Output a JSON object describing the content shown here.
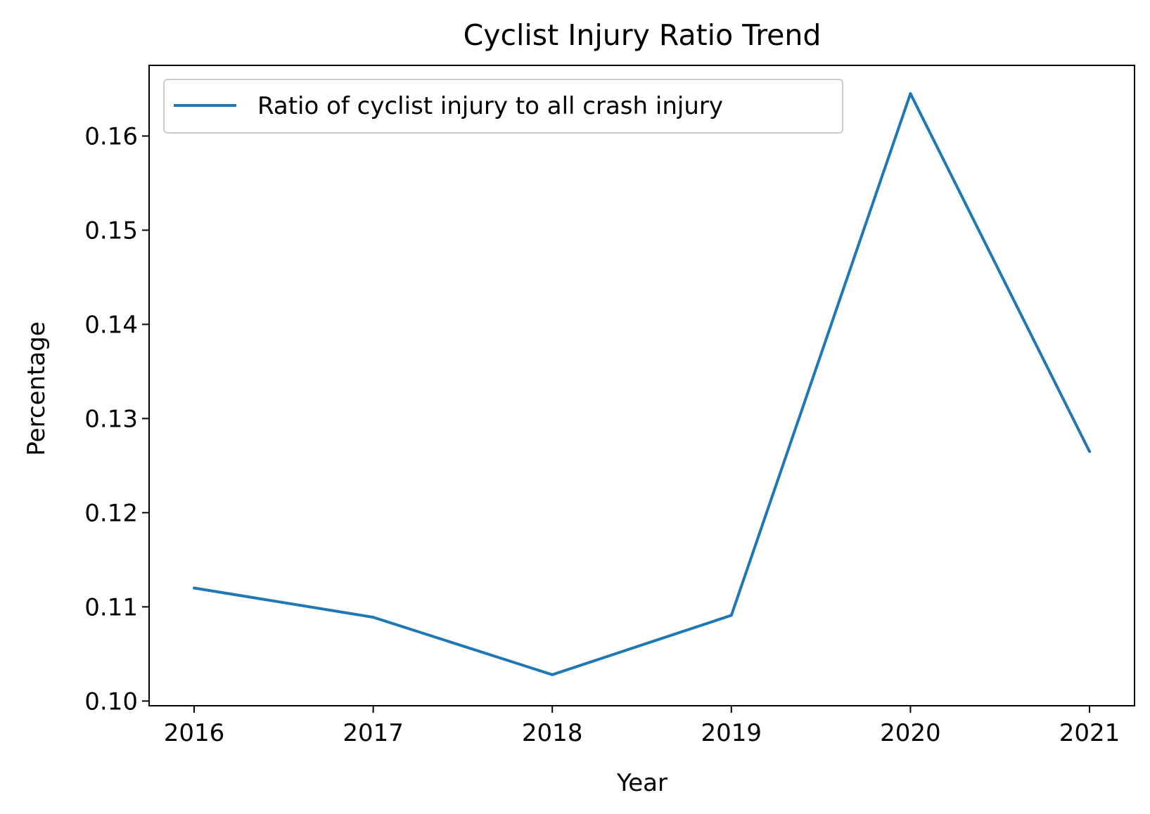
{
  "chart_data": {
    "type": "line",
    "title": "Cyclist Injury Ratio Trend",
    "xlabel": "Year",
    "ylabel": "Percentage",
    "x": [
      "2016",
      "2017",
      "2018",
      "2019",
      "2020",
      "2021"
    ],
    "series": [
      {
        "name": "Ratio of cyclist injury to all crash injury",
        "values": [
          0.112,
          0.1089,
          0.1028,
          0.1091,
          0.1645,
          0.1265
        ],
        "color": "#1f77b4"
      }
    ],
    "ylim": [
      0.0995,
      0.1675
    ],
    "yticks": [
      "0.10",
      "0.11",
      "0.12",
      "0.13",
      "0.14",
      "0.15",
      "0.16"
    ],
    "grid": false,
    "legend_position": "upper-left"
  }
}
